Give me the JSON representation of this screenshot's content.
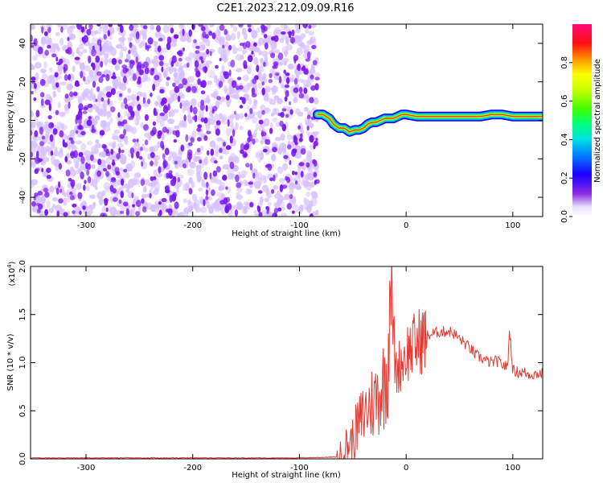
{
  "title": "C2E1.2023.212.09.09.R16",
  "colors": {
    "spectrogram_noise": "#7a16f0",
    "spectrogram_noise_light": "#d8c2ff",
    "snr_line": "#e33a33"
  },
  "chart_data": [
    {
      "type": "heatmap",
      "xlabel": "Height of straight line (km)",
      "ylabel": "Frequency (Hz)",
      "xlim": [
        -352,
        128
      ],
      "ylim": [
        -50,
        50
      ],
      "xticks": [
        -300,
        -200,
        -100,
        0,
        100
      ],
      "yticks": [
        -40,
        -20,
        0,
        20,
        40
      ],
      "colorbar": {
        "label": "Normalized spectral amplitude",
        "range": [
          0,
          1
        ],
        "ticks": [
          "0.0",
          "0.2",
          "0.4",
          "0.6",
          "0.8"
        ],
        "tick_values": [
          0,
          0.2,
          0.4,
          0.6,
          0.8
        ]
      },
      "noise_region_x": [
        -352,
        -83
      ],
      "signal_trace": {
        "x": [
          -83,
          -78,
          -72,
          -68,
          -63,
          -58,
          -53,
          -48,
          -44,
          -40,
          -36,
          -32,
          -28,
          -24,
          -20,
          -16,
          -12,
          -8,
          -4,
          0,
          10,
          30,
          50,
          70,
          80,
          90,
          100,
          110,
          128
        ],
        "y": [
          3,
          3,
          1,
          -2,
          -4,
          -4,
          -6,
          -5,
          -5,
          -4,
          -2,
          -1,
          -1,
          0,
          1,
          1,
          1,
          2,
          3,
          3,
          2,
          2,
          2,
          2,
          3,
          3,
          2,
          2,
          2
        ]
      }
    },
    {
      "type": "line",
      "xlabel": "Height of straight line (km)",
      "ylabel": "SNR (10 * v/v)",
      "scale_label": "(x10",
      "scale_exp": "4",
      "scale_close": ")",
      "xlim": [
        -352,
        128
      ],
      "ylim": [
        0,
        2
      ],
      "xticks": [
        -300,
        -200,
        -100,
        0,
        100
      ],
      "yticks": [
        "0.0",
        "0.5",
        "1.0",
        "1.5",
        "2.0"
      ],
      "ytick_values": [
        0,
        0.5,
        1,
        1.5,
        2
      ],
      "series": [
        {
          "x": [
            -352,
            -100,
            -62,
            -55,
            -50,
            -45,
            -40,
            -35,
            -30,
            -25,
            -20,
            -17,
            -15,
            -10,
            -5,
            0,
            5,
            10,
            15,
            20,
            25,
            30,
            35,
            40,
            45,
            50,
            55,
            60,
            65,
            70,
            75,
            80,
            85,
            90,
            95,
            97,
            100,
            105,
            110,
            115,
            120,
            128
          ],
          "values": [
            0.01,
            0.01,
            0.02,
            0.15,
            0.2,
            0.35,
            0.45,
            0.55,
            0.6,
            0.7,
            0.8,
            1.0,
            2.0,
            0.9,
            1.0,
            1.1,
            1.15,
            1.2,
            1.25,
            1.28,
            1.3,
            1.32,
            1.32,
            1.33,
            1.3,
            1.25,
            1.2,
            1.15,
            1.08,
            1.05,
            1.02,
            1.0,
            1.02,
            0.98,
            0.95,
            1.35,
            0.92,
            0.9,
            0.9,
            0.88,
            0.88,
            0.89
          ]
        }
      ]
    }
  ]
}
